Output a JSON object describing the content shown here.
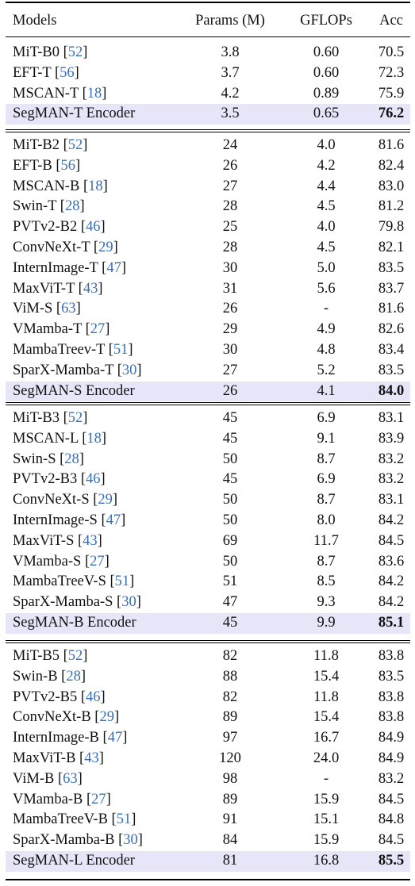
{
  "headers": {
    "models": "Models",
    "params": "Params (M)",
    "gflops": "GFLOPs",
    "acc": "Acc"
  },
  "groups": [
    {
      "rows": [
        {
          "model": "MiT-B0",
          "ref": "52",
          "params": "3.8",
          "gflops": "0.60",
          "acc": "70.5"
        },
        {
          "model": "EFT-T",
          "ref": "56",
          "params": "3.7",
          "gflops": "0.60",
          "acc": "72.3"
        },
        {
          "model": "MSCAN-T",
          "ref": "18",
          "params": "4.2",
          "gflops": "0.89",
          "acc": "75.9"
        },
        {
          "model": "SegMAN-T Encoder",
          "ref": "",
          "params": "3.5",
          "gflops": "0.65",
          "acc": "76.2",
          "highlight": true
        }
      ]
    },
    {
      "rows": [
        {
          "model": "MiT-B2",
          "ref": "52",
          "params": "24",
          "gflops": "4.0",
          "acc": "81.6"
        },
        {
          "model": "EFT-B",
          "ref": "56",
          "params": "26",
          "gflops": "4.2",
          "acc": "82.4"
        },
        {
          "model": "MSCAN-B",
          "ref": "18",
          "params": "27",
          "gflops": "4.4",
          "acc": "83.0"
        },
        {
          "model": "Swin-T",
          "ref": "28",
          "params": "28",
          "gflops": "4.5",
          "acc": "81.2"
        },
        {
          "model": "PVTv2-B2",
          "ref": "46",
          "params": "25",
          "gflops": "4.0",
          "acc": "79.8"
        },
        {
          "model": "ConvNeXt-T",
          "ref": "29",
          "params": "28",
          "gflops": "4.5",
          "acc": "82.1"
        },
        {
          "model": "InternImage-T",
          "ref": "47",
          "params": "30",
          "gflops": "5.0",
          "acc": "83.5"
        },
        {
          "model": "MaxViT-T",
          "ref": "43",
          "params": "31",
          "gflops": "5.6",
          "acc": "83.7"
        },
        {
          "model": "ViM-S",
          "ref": "63",
          "params": "26",
          "gflops": "-",
          "acc": "81.6"
        },
        {
          "model": "VMamba-T",
          "ref": "27",
          "params": "29",
          "gflops": "4.9",
          "acc": "82.6"
        },
        {
          "model": "MambaTreev-T",
          "ref": "51",
          "params": "30",
          "gflops": "4.8",
          "acc": "83.4"
        },
        {
          "model": "SparX-Mamba-T",
          "ref": "30",
          "params": "27",
          "gflops": "5.2",
          "acc": "83.5"
        },
        {
          "model": "SegMAN-S Encoder",
          "ref": "",
          "params": "26",
          "gflops": "4.1",
          "acc": "84.0",
          "highlight": true
        }
      ]
    },
    {
      "rows": [
        {
          "model": "MiT-B3",
          "ref": "52",
          "params": "45",
          "gflops": "6.9",
          "acc": "83.1"
        },
        {
          "model": "MSCAN-L",
          "ref": "18",
          "params": "45",
          "gflops": "9.1",
          "acc": "83.9"
        },
        {
          "model": "Swin-S",
          "ref": "28",
          "params": "50",
          "gflops": "8.7",
          "acc": "83.2"
        },
        {
          "model": "PVTv2-B3",
          "ref": "46",
          "params": "45",
          "gflops": "6.9",
          "acc": "83.2"
        },
        {
          "model": "ConvNeXt-S",
          "ref": "29",
          "params": "50",
          "gflops": "8.7",
          "acc": "83.1"
        },
        {
          "model": "InternImage-S",
          "ref": "47",
          "params": "50",
          "gflops": "8.0",
          "acc": "84.2"
        },
        {
          "model": "MaxViT-S",
          "ref": "43",
          "params": "69",
          "gflops": "11.7",
          "acc": "84.5"
        },
        {
          "model": "VMamba-S",
          "ref": "27",
          "params": "50",
          "gflops": "8.7",
          "acc": "83.6"
        },
        {
          "model": "MambaTreeV-S",
          "ref": "51",
          "params": "51",
          "gflops": "8.5",
          "acc": "84.2"
        },
        {
          "model": "SparX-Mamba-S",
          "ref": "30",
          "params": "47",
          "gflops": "9.3",
          "acc": "84.2"
        },
        {
          "model": "SegMAN-B Encoder",
          "ref": "",
          "params": "45",
          "gflops": "9.9",
          "acc": "85.1",
          "highlight": true
        }
      ]
    },
    {
      "rows": [
        {
          "model": "MiT-B5",
          "ref": "52",
          "params": "82",
          "gflops": "11.8",
          "acc": "83.8"
        },
        {
          "model": "Swin-B",
          "ref": "28",
          "params": "88",
          "gflops": "15.4",
          "acc": "83.5"
        },
        {
          "model": "PVTv2-B5",
          "ref": "46",
          "params": "82",
          "gflops": "11.8",
          "acc": "83.8"
        },
        {
          "model": "ConvNeXt-B",
          "ref": "29",
          "params": "89",
          "gflops": "15.4",
          "acc": "83.8"
        },
        {
          "model": "InternImage-B",
          "ref": "47",
          "params": "97",
          "gflops": "16.7",
          "acc": "84.9"
        },
        {
          "model": "MaxViT-B",
          "ref": "43",
          "params": "120",
          "gflops": "24.0",
          "acc": "84.9"
        },
        {
          "model": "ViM-B",
          "ref": "63",
          "params": "98",
          "gflops": "-",
          "acc": "83.2"
        },
        {
          "model": "VMamba-B",
          "ref": "27",
          "params": "89",
          "gflops": "15.9",
          "acc": "84.5"
        },
        {
          "model": "MambaTreeV-B",
          "ref": "51",
          "params": "91",
          "gflops": "15.1",
          "acc": "84.8"
        },
        {
          "model": "SparX-Mamba-B",
          "ref": "30",
          "params": "84",
          "gflops": "15.9",
          "acc": "84.5"
        },
        {
          "model": "SegMAN-L Encoder",
          "ref": "",
          "params": "81",
          "gflops": "16.8",
          "acc": "85.5",
          "highlight": true
        }
      ]
    }
  ]
}
